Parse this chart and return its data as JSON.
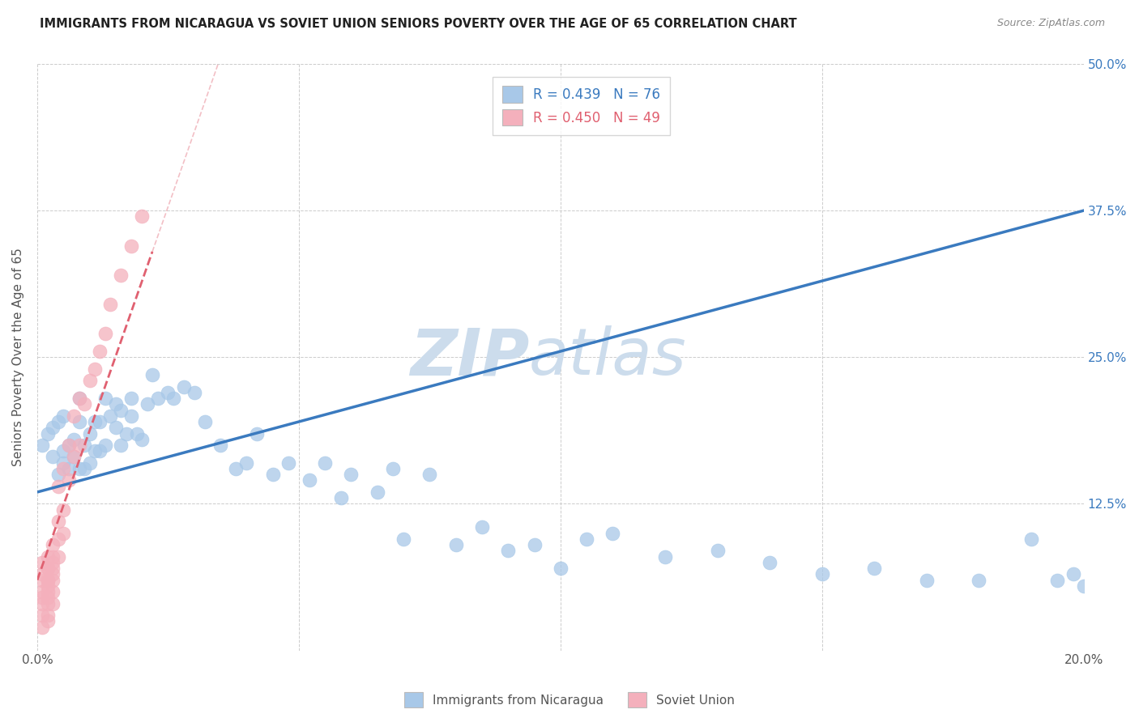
{
  "title": "IMMIGRANTS FROM NICARAGUA VS SOVIET UNION SENIORS POVERTY OVER THE AGE OF 65 CORRELATION CHART",
  "source": "Source: ZipAtlas.com",
  "ylabel": "Seniors Poverty Over the Age of 65",
  "xlim": [
    0.0,
    0.2
  ],
  "ylim": [
    0.0,
    0.5
  ],
  "xticks": [
    0.0,
    0.05,
    0.1,
    0.15,
    0.2
  ],
  "xtick_labels": [
    "0.0%",
    "",
    "",
    "",
    "20.0%"
  ],
  "yticks": [
    0.0,
    0.125,
    0.25,
    0.375,
    0.5
  ],
  "ytick_labels": [
    "",
    "12.5%",
    "25.0%",
    "37.5%",
    "50.0%"
  ],
  "nicaragua_R": 0.439,
  "nicaragua_N": 76,
  "soviet_R": 0.45,
  "soviet_N": 49,
  "blue_color": "#a8c8e8",
  "pink_color": "#f4b0bc",
  "blue_line_color": "#3a7abf",
  "pink_line_color": "#e06070",
  "watermark_color": "#ccdcec",
  "background_color": "#ffffff",
  "grid_color": "#cccccc",
  "nicaragua_x": [
    0.001,
    0.002,
    0.003,
    0.003,
    0.004,
    0.004,
    0.005,
    0.005,
    0.005,
    0.006,
    0.006,
    0.007,
    0.007,
    0.008,
    0.008,
    0.008,
    0.009,
    0.009,
    0.01,
    0.01,
    0.011,
    0.011,
    0.012,
    0.012,
    0.013,
    0.013,
    0.014,
    0.015,
    0.015,
    0.016,
    0.016,
    0.017,
    0.018,
    0.018,
    0.019,
    0.02,
    0.021,
    0.022,
    0.023,
    0.025,
    0.026,
    0.028,
    0.03,
    0.032,
    0.035,
    0.038,
    0.04,
    0.042,
    0.045,
    0.048,
    0.052,
    0.055,
    0.058,
    0.06,
    0.065,
    0.068,
    0.07,
    0.075,
    0.08,
    0.085,
    0.09,
    0.095,
    0.1,
    0.105,
    0.11,
    0.12,
    0.13,
    0.14,
    0.15,
    0.16,
    0.17,
    0.18,
    0.19,
    0.195,
    0.198,
    0.2
  ],
  "nicaragua_y": [
    0.175,
    0.185,
    0.165,
    0.19,
    0.15,
    0.195,
    0.16,
    0.17,
    0.2,
    0.155,
    0.175,
    0.165,
    0.18,
    0.155,
    0.195,
    0.215,
    0.155,
    0.175,
    0.16,
    0.185,
    0.17,
    0.195,
    0.17,
    0.195,
    0.175,
    0.215,
    0.2,
    0.19,
    0.21,
    0.175,
    0.205,
    0.185,
    0.2,
    0.215,
    0.185,
    0.18,
    0.21,
    0.235,
    0.215,
    0.22,
    0.215,
    0.225,
    0.22,
    0.195,
    0.175,
    0.155,
    0.16,
    0.185,
    0.15,
    0.16,
    0.145,
    0.16,
    0.13,
    0.15,
    0.135,
    0.155,
    0.095,
    0.15,
    0.09,
    0.105,
    0.085,
    0.09,
    0.07,
    0.095,
    0.1,
    0.08,
    0.085,
    0.075,
    0.065,
    0.07,
    0.06,
    0.06,
    0.095,
    0.06,
    0.065,
    0.055
  ],
  "soviet_x": [
    0.001,
    0.001,
    0.001,
    0.001,
    0.001,
    0.001,
    0.001,
    0.001,
    0.002,
    0.002,
    0.002,
    0.002,
    0.002,
    0.002,
    0.002,
    0.002,
    0.002,
    0.002,
    0.002,
    0.003,
    0.003,
    0.003,
    0.003,
    0.003,
    0.003,
    0.003,
    0.003,
    0.004,
    0.004,
    0.004,
    0.004,
    0.005,
    0.005,
    0.005,
    0.006,
    0.006,
    0.007,
    0.007,
    0.008,
    0.008,
    0.009,
    0.01,
    0.011,
    0.012,
    0.013,
    0.014,
    0.016,
    0.018,
    0.02
  ],
  "soviet_y": [
    0.05,
    0.06,
    0.03,
    0.065,
    0.045,
    0.075,
    0.02,
    0.04,
    0.06,
    0.03,
    0.04,
    0.05,
    0.06,
    0.07,
    0.025,
    0.045,
    0.055,
    0.07,
    0.08,
    0.05,
    0.06,
    0.07,
    0.08,
    0.09,
    0.04,
    0.065,
    0.075,
    0.08,
    0.095,
    0.11,
    0.14,
    0.1,
    0.12,
    0.155,
    0.145,
    0.175,
    0.165,
    0.2,
    0.175,
    0.215,
    0.21,
    0.23,
    0.24,
    0.255,
    0.27,
    0.295,
    0.32,
    0.345,
    0.37
  ],
  "nicaragua_line_x": [
    0.0,
    0.2
  ],
  "nicaragua_line_y": [
    0.135,
    0.375
  ],
  "soviet_line_x": [
    0.0,
    0.022
  ],
  "soviet_line_y": [
    0.06,
    0.34
  ]
}
